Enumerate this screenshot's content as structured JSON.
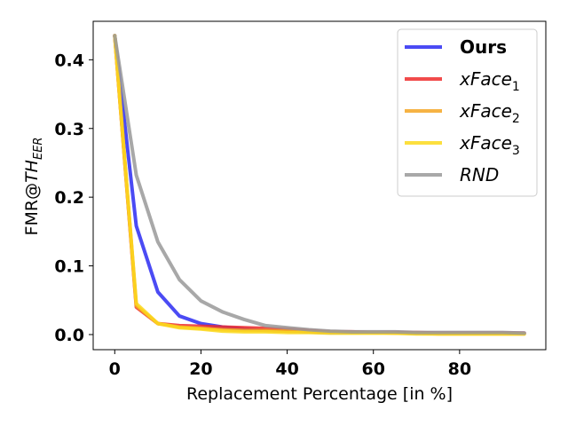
{
  "chart_data": {
    "type": "line",
    "title": "",
    "xlabel": "Replacement Percentage [in %]",
    "ylabel": {
      "main": "FMR@",
      "italic": "TH",
      "sub": "EER"
    },
    "xlim": [
      -5,
      100
    ],
    "ylim": [
      -0.022,
      0.456
    ],
    "xticks": [
      0,
      20,
      40,
      60,
      80
    ],
    "xtick_labels": [
      "0",
      "20",
      "40",
      "60",
      "80"
    ],
    "yticks": [
      0.0,
      0.1,
      0.2,
      0.3,
      0.4
    ],
    "ytick_labels": [
      "0.0",
      "0.1",
      "0.2",
      "0.3",
      "0.4"
    ],
    "grid": false,
    "legend_position": "top-right",
    "x": [
      0,
      5,
      10,
      15,
      20,
      25,
      30,
      35,
      40,
      45,
      50,
      55,
      60,
      65,
      70,
      75,
      80,
      85,
      90,
      95
    ],
    "series": [
      {
        "name": "Ours",
        "name_sub": "",
        "style": "bold",
        "color": "#2c2cf2",
        "values": [
          0.435,
          0.158,
          0.062,
          0.027,
          0.016,
          0.011,
          0.008,
          0.006,
          0.005,
          0.004,
          0.003,
          0.003,
          0.003,
          0.003,
          0.002,
          0.002,
          0.002,
          0.002,
          0.002,
          0.002
        ]
      },
      {
        "name": "xFace",
        "name_sub": "1",
        "style": "italic",
        "color": "#ee2c2c",
        "values": [
          0.435,
          0.04,
          0.016,
          0.013,
          0.012,
          0.011,
          0.01,
          0.009,
          0.008,
          0.006,
          0.004,
          0.004,
          0.003,
          0.003,
          0.003,
          0.002,
          0.002,
          0.002,
          0.002,
          0.002
        ]
      },
      {
        "name": "xFace",
        "name_sub": "2",
        "style": "italic",
        "color": "#f5a623",
        "values": [
          0.435,
          0.042,
          0.016,
          0.011,
          0.009,
          0.007,
          0.006,
          0.006,
          0.005,
          0.004,
          0.004,
          0.003,
          0.003,
          0.002,
          0.002,
          0.001,
          0.001,
          0.001,
          0.001,
          0.001
        ]
      },
      {
        "name": "xFace",
        "name_sub": "3",
        "style": "italic",
        "color": "#fcd91c",
        "values": [
          0.435,
          0.045,
          0.016,
          0.01,
          0.008,
          0.005,
          0.004,
          0.004,
          0.003,
          0.003,
          0.002,
          0.002,
          0.002,
          0.002,
          0.001,
          0.001,
          0.001,
          0.001,
          0.001,
          0.001
        ]
      },
      {
        "name": "RND",
        "name_sub": "",
        "style": "italic",
        "color": "#999999",
        "values": [
          0.435,
          0.232,
          0.135,
          0.08,
          0.049,
          0.033,
          0.022,
          0.013,
          0.01,
          0.007,
          0.005,
          0.004,
          0.004,
          0.004,
          0.003,
          0.003,
          0.003,
          0.003,
          0.003,
          0.002
        ]
      }
    ]
  }
}
